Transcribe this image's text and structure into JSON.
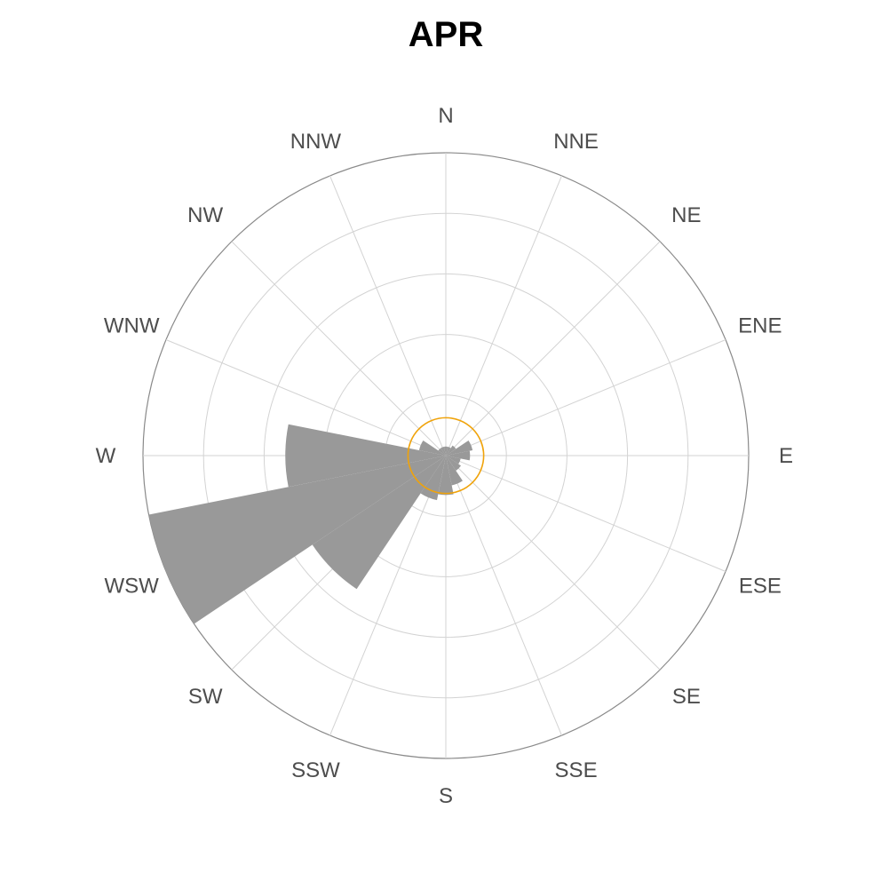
{
  "chart_data": {
    "type": "polar-bar",
    "title": "APR",
    "directions": [
      "N",
      "NNE",
      "NE",
      "ENE",
      "E",
      "ESE",
      "SE",
      "SSE",
      "S",
      "SSW",
      "SW",
      "WSW",
      "W",
      "WNW",
      "NW",
      "NNW"
    ],
    "values": [
      0.3,
      0.3,
      0.4,
      0.9,
      0.8,
      0.5,
      0.6,
      1.0,
      1.3,
      1.5,
      5.3,
      10.0,
      5.3,
      0.9,
      0.3,
      0.3
    ],
    "rmax": 10.0,
    "rings": [
      2,
      4,
      6,
      8,
      10
    ],
    "reference_ring": 1.25,
    "grid": true,
    "colors": {
      "bars": "#999999",
      "reference_ring": "#f0a30a",
      "grid": "#d3d3d3",
      "outer_ring": "#8a8a8a"
    }
  }
}
